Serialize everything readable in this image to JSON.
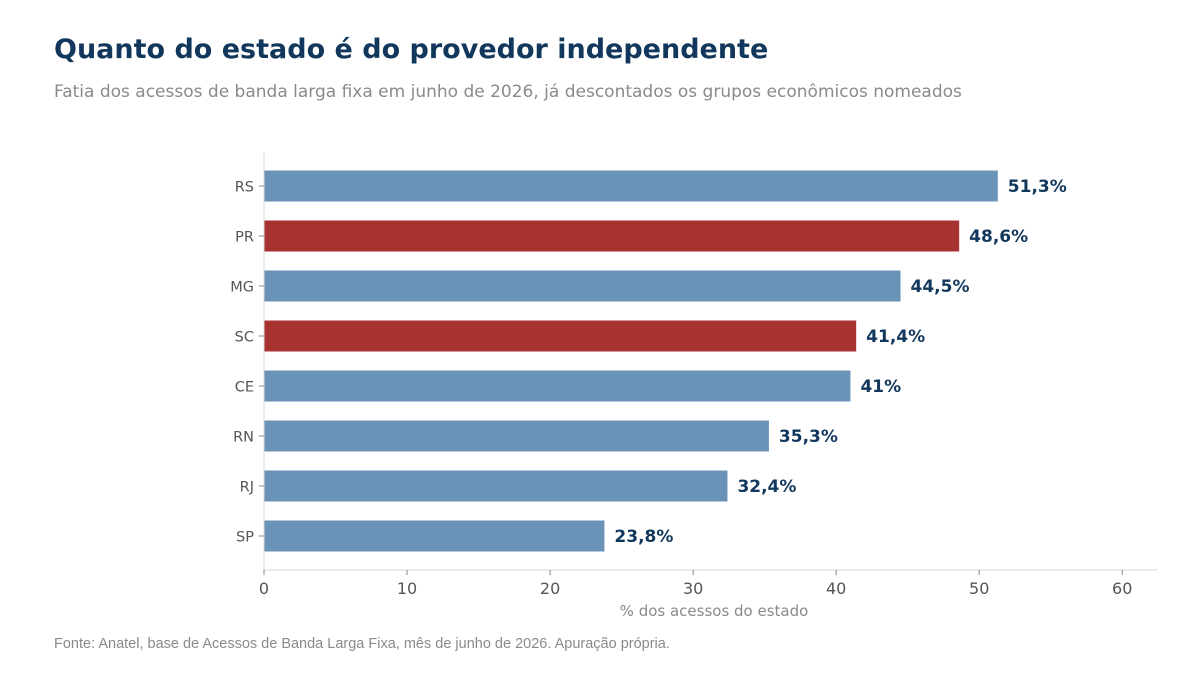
{
  "header": {
    "title": "Quanto do estado é do provedor independente",
    "subtitle": "Fatia dos acessos de banda larga fixa em junho de 2026, já descontados os grupos econômicos nomeados"
  },
  "footer": {
    "source": "Fonte: Anatel, base de Acessos de Banda Larga Fixa, mês de junho de 2026. Apuração própria."
  },
  "colors": {
    "default_bar": "#6a93b8",
    "highlight_bar": "#a83230",
    "value_label": "#12375c",
    "axis_text": "#555555",
    "axis_line": "#d9d9d9"
  },
  "chart_data": {
    "type": "bar",
    "orientation": "horizontal",
    "categories": [
      "RS",
      "PR",
      "MG",
      "SC",
      "CE",
      "RN",
      "RJ",
      "SP"
    ],
    "values": [
      51.3,
      48.6,
      44.5,
      41.4,
      41.0,
      35.3,
      32.4,
      23.8
    ],
    "value_labels": [
      "51,3%",
      "48,6%",
      "44,5%",
      "41,4%",
      "41%",
      "35,3%",
      "32,4%",
      "23,8%"
    ],
    "highlighted": [
      "PR",
      "SC"
    ],
    "xlabel": "% dos acessos do estado",
    "ylabel": "",
    "xlim": [
      0,
      62.5
    ],
    "xticks": [
      0,
      10,
      20,
      30,
      40,
      50,
      60
    ],
    "grid": false,
    "legend": "none"
  }
}
